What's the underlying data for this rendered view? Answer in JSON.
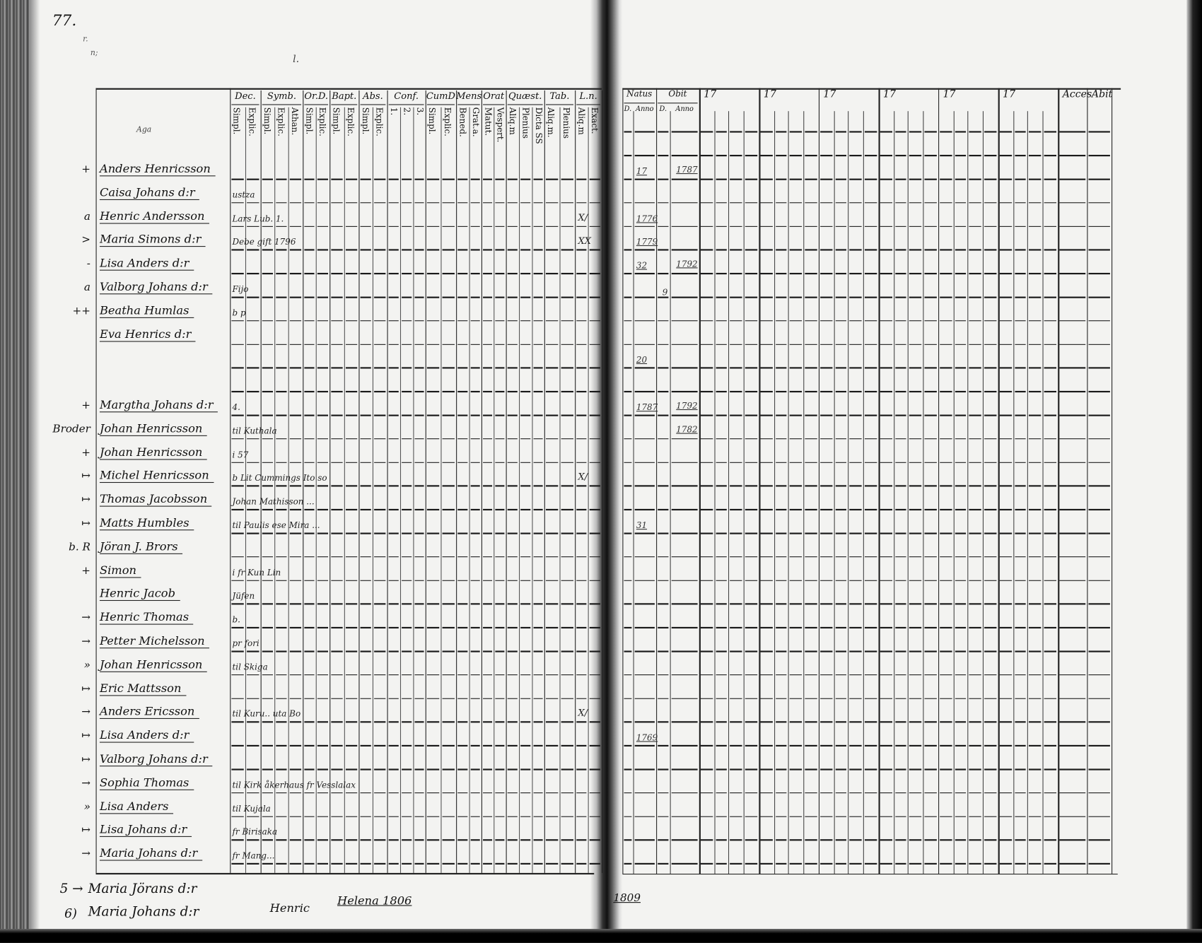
{
  "page_number": "77.",
  "corner_marks": [
    "r.",
    "n;",
    "l."
  ],
  "name_column_label": "Aga",
  "left_headers": [
    {
      "label": "Dec.",
      "subs": [
        "Simpl.",
        "Explic."
      ]
    },
    {
      "label": "Symb.",
      "subs": [
        "Simpl.",
        "Explic.",
        "Athan."
      ]
    },
    {
      "label": "Or.D.",
      "subs": [
        "Simpl.",
        "Explic."
      ]
    },
    {
      "label": "Bapt.",
      "subs": [
        "Simpl.",
        "Explic."
      ]
    },
    {
      "label": "Abs.",
      "subs": [
        "Simpl.",
        "Explic."
      ]
    },
    {
      "label": "Conf.",
      "subs": [
        "1.",
        "2.",
        "3."
      ]
    },
    {
      "label": "CumD",
      "subs": [
        "Simpl.",
        "Explic."
      ]
    },
    {
      "label": "Mens",
      "subs": [
        "Bened.",
        "Grat.a."
      ]
    },
    {
      "label": "Orat",
      "subs": [
        "Matut.",
        "Vespert."
      ]
    },
    {
      "label": "Quæst.",
      "subs": [
        "Aliq.m",
        "Plenius",
        "Dicta SS"
      ]
    },
    {
      "label": "Tab.",
      "subs": [
        "Aliq.m.",
        "Plenius"
      ]
    },
    {
      "label": "L.n.",
      "subs": [
        "Aliq.m",
        "Exact."
      ]
    }
  ],
  "right_headers": [
    {
      "label": "Natus",
      "subs": [
        "D.",
        "Anno"
      ]
    },
    {
      "label": "Obit",
      "subs": [
        "D.",
        "Anno"
      ]
    },
    {
      "label": "17",
      "subs": [
        "",
        "",
        "",
        ""
      ]
    },
    {
      "label": "17",
      "subs": [
        "",
        "",
        "",
        ""
      ]
    },
    {
      "label": "17",
      "subs": [
        "",
        "",
        "",
        ""
      ]
    },
    {
      "label": "17",
      "subs": [
        "",
        "",
        "",
        ""
      ]
    },
    {
      "label": "17",
      "subs": [
        "",
        "",
        "",
        ""
      ]
    },
    {
      "label": "17",
      "subs": [
        "",
        "",
        "",
        ""
      ]
    },
    {
      "label": "Acces",
      "subs": [
        ""
      ]
    },
    {
      "label": "Abit",
      "subs": [
        ""
      ]
    }
  ],
  "entries": [
    {
      "mark": "+",
      "name": "Anders Henricsson",
      "note": "",
      "ln": "",
      "natus": "17",
      "obit_d": "",
      "obit": "1787"
    },
    {
      "mark": "",
      "name": "Caisa Johans d:r",
      "note": "ustza",
      "ln": "",
      "natus": "",
      "obit_d": "",
      "obit": ""
    },
    {
      "mark": "a",
      "name": "Henric Andersson",
      "note": "Lars Lub. 1.",
      "ln": "X/",
      "natus": "1776",
      "obit_d": "",
      "obit": ""
    },
    {
      "mark": ">",
      "name": "Maria Simons d:r",
      "note": "Debe gift 1796",
      "ln": "XX",
      "natus": "1779",
      "obit_d": "",
      "obit": ""
    },
    {
      "mark": "-",
      "name": "Lisa Anders d:r",
      "note": "",
      "ln": "",
      "natus": "32",
      "obit_d": "",
      "obit": "1792"
    },
    {
      "mark": "a",
      "name": "Valborg Johans d:r",
      "note": "Fijo",
      "ln": "",
      "natus": "",
      "obit_d": "9",
      "obit": ""
    },
    {
      "mark": "++",
      "name": "Beatha Humlas",
      "note": "b p",
      "ln": "",
      "natus": "",
      "obit_d": "",
      "obit": ""
    },
    {
      "mark": "",
      "name": "Eva Henrics d:r",
      "note": "",
      "ln": "",
      "natus": "",
      "obit_d": "",
      "obit": ""
    },
    {
      "mark": "",
      "name": "",
      "note": "",
      "ln": "",
      "natus": "20",
      "obit_d": "",
      "obit": ""
    },
    {
      "mark": "",
      "name": "",
      "note": "",
      "ln": "",
      "natus": "",
      "obit_d": "",
      "obit": ""
    },
    {
      "mark": "+",
      "name": "Margtha Johans d:r",
      "note": "4.",
      "ln": "",
      "natus": "1787",
      "obit_d": "",
      "obit": "1792"
    },
    {
      "mark": "Broder",
      "name": "Johan Henricsson",
      "note": "til Kuthala",
      "ln": "",
      "natus": "",
      "obit_d": "",
      "obit": "1782"
    },
    {
      "mark": "+",
      "name": "Johan Henricsson",
      "note": "i 57",
      "ln": "",
      "natus": "",
      "obit_d": "",
      "obit": ""
    },
    {
      "mark": "↦",
      "name": "Michel Henricsson",
      "note": "b   Lit Cummings   Ito so",
      "ln": "X/",
      "natus": "",
      "obit_d": "",
      "obit": ""
    },
    {
      "mark": "↦",
      "name": "Thomas Jacobsson",
      "note": "Johan Mathisson ...",
      "ln": "",
      "natus": "",
      "obit_d": "",
      "obit": ""
    },
    {
      "mark": "↦",
      "name": "Matts Humbles",
      "note": "til Paulis   ese Mira ...",
      "ln": "",
      "natus": "31",
      "obit_d": "",
      "obit": ""
    },
    {
      "mark": "b. R",
      "name": "Jöran J. Brors",
      "note": "",
      "ln": "",
      "natus": "",
      "obit_d": "",
      "obit": ""
    },
    {
      "mark": "+",
      "name": "Simon",
      "note": "i fr  Kun Lin",
      "ln": "",
      "natus": "",
      "obit_d": "",
      "obit": ""
    },
    {
      "mark": "",
      "name": "Henric Jacob",
      "note": "Jüfen",
      "ln": "",
      "natus": "",
      "obit_d": "",
      "obit": ""
    },
    {
      "mark": "→",
      "name": "Henric Thomas",
      "note": "b.",
      "ln": "",
      "natus": "",
      "obit_d": "",
      "obit": ""
    },
    {
      "mark": "→",
      "name": "Petter Michelsson",
      "note": "pr fori",
      "ln": "",
      "natus": "",
      "obit_d": "",
      "obit": ""
    },
    {
      "mark": "»",
      "name": "Johan Henricsson",
      "note": "til Skiga",
      "ln": "",
      "natus": "",
      "obit_d": "",
      "obit": ""
    },
    {
      "mark": "↦",
      "name": "Eric Mattsson",
      "note": "",
      "ln": "",
      "natus": "",
      "obit_d": "",
      "obit": ""
    },
    {
      "mark": "→",
      "name": "Anders Ericsson",
      "note": "til Kuru..   uta Bo",
      "ln": "X/",
      "natus": "",
      "obit_d": "",
      "obit": ""
    },
    {
      "mark": "↦",
      "name": "Lisa Anders d:r",
      "note": "",
      "ln": "",
      "natus": "1769",
      "obit_d": "",
      "obit": ""
    },
    {
      "mark": "↦",
      "name": "Valborg Johans d:r",
      "note": "",
      "ln": "",
      "natus": "",
      "obit_d": "",
      "obit": ""
    },
    {
      "mark": "→",
      "name": "Sophia Thomas",
      "note": "til Kirk åkerhaus fr Vesslalax",
      "ln": "",
      "natus": "",
      "obit_d": "",
      "obit": ""
    },
    {
      "mark": "»",
      "name": "Lisa Anders",
      "note": "til Kujala",
      "ln": "",
      "natus": "",
      "obit_d": "",
      "obit": ""
    },
    {
      "mark": "↦",
      "name": "Lisa Johans d:r",
      "note": "fr Birisaka",
      "ln": "",
      "natus": "",
      "obit_d": "",
      "obit": ""
    },
    {
      "mark": "→",
      "name": "Maria Johans d:r",
      "note": "fr Mang...",
      "ln": "",
      "natus": "",
      "obit_d": "",
      "obit": ""
    }
  ],
  "footer_entries": [
    {
      "mark": "5 →",
      "name": "Maria Jörans d:r"
    },
    {
      "mark": "6)",
      "name": "Maria Johans d:r",
      "extra1": "Henric",
      "extra2": "Helena 1806"
    }
  ],
  "right_footer_year": "1809"
}
